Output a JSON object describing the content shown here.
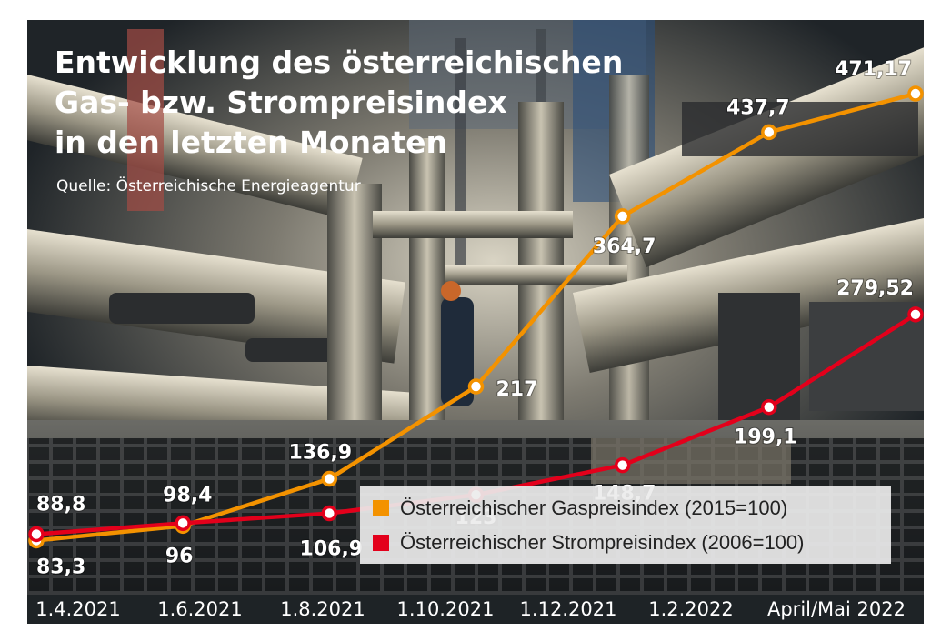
{
  "chart_data": {
    "type": "line",
    "title_lines": [
      "Entwicklung des österreichischen",
      "Gas- bzw. Strompreisindex",
      "in den letzten Monaten"
    ],
    "source": "Quelle: Österreichische Energieagentur",
    "categories": [
      "1.4.2021",
      "1.6.2021",
      "1.8.2021",
      "1.10.2021",
      "1.12.2021",
      "1.2.2022",
      "April/Mai 2022"
    ],
    "series": [
      {
        "name": "Österreichischer Gaspreisindex (2015=100)",
        "color": "#f39200",
        "values": [
          83.3,
          96,
          136.9,
          217,
          364.7,
          437.7,
          471.17
        ],
        "labels": [
          "83,3",
          "96",
          "136,9",
          "217",
          "364,7",
          "437,7",
          "471,17"
        ]
      },
      {
        "name": "Österreichischer Strompreisindex (2006=100)",
        "color": "#e3001b",
        "values": [
          88.8,
          98.4,
          106.9,
          123,
          148.7,
          199.1,
          279.52
        ],
        "labels": [
          "88,8",
          "98,4",
          "106,9",
          "123",
          "148,7",
          "199,1",
          "279,52"
        ]
      }
    ],
    "ylim": [
      0,
      500
    ],
    "grid": false,
    "legend_position": "bottom-right"
  }
}
